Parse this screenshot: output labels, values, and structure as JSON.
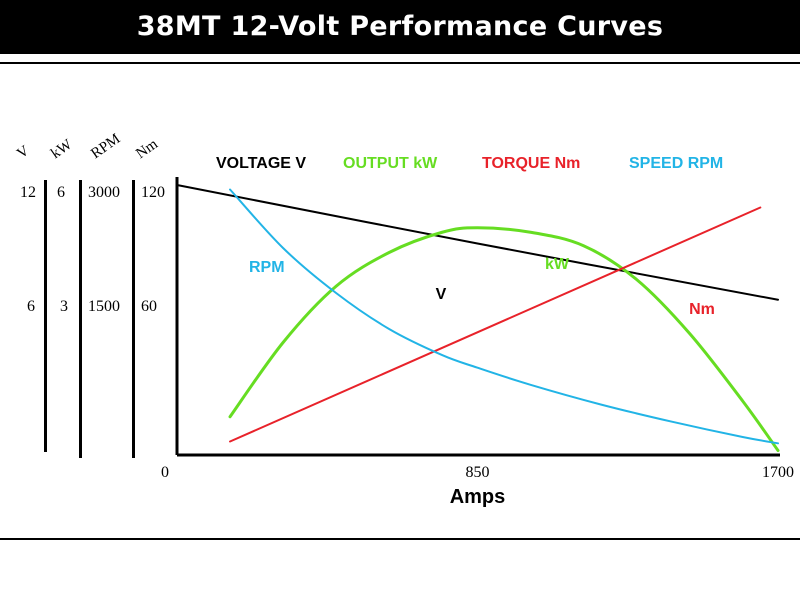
{
  "title": "38MT 12-Volt Performance Curves",
  "colors": {
    "voltage": "#000000",
    "output": "#66dd22",
    "torque": "#e8222a",
    "speed": "#22b4e6",
    "title_bg": "#000000",
    "title_text": "#ffffff"
  },
  "left_axes": [
    {
      "header": "V",
      "top": "12",
      "mid": "6"
    },
    {
      "header": "kW",
      "top": "6",
      "mid": "3"
    },
    {
      "header": "RPM",
      "top": "3000",
      "mid": "1500"
    },
    {
      "header": "Nm",
      "top": "120",
      "mid": "60"
    }
  ],
  "chart_data": {
    "type": "line",
    "title": "38MT 12-Volt Performance Curves",
    "xlabel": "Amps",
    "xlim": [
      0,
      1700
    ],
    "x_ticks": [
      "0",
      "850",
      "1700"
    ],
    "ylim_normalized": [
      0,
      1
    ],
    "legend": {
      "placement": "top",
      "entries": [
        "VOLTAGE V",
        "OUTPUT kW",
        "TORQUE Nm",
        "SPEED RPM"
      ]
    },
    "series": [
      {
        "name": "VOLTAGE V",
        "label": "V",
        "key": "voltage",
        "unit": "V",
        "x": [
          0,
          850,
          1700
        ],
        "y": [
          12.0,
          9.4,
          6.9
        ]
      },
      {
        "name": "OUTPUT kW",
        "label": "kW",
        "key": "output",
        "unit": "kW",
        "x": [
          150,
          300,
          450,
          600,
          750,
          850,
          1000,
          1150,
          1300,
          1450,
          1600,
          1700
        ],
        "y": [
          0.85,
          2.5,
          3.75,
          4.5,
          4.95,
          5.05,
          4.95,
          4.65,
          3.9,
          2.7,
          1.2,
          0.1
        ]
      },
      {
        "name": "TORQUE Nm",
        "label": "Nm",
        "key": "torque",
        "unit": "Nm",
        "x": [
          150,
          1650
        ],
        "y": [
          6,
          110
        ]
      },
      {
        "name": "SPEED RPM",
        "label": "RPM",
        "key": "speed",
        "unit": "RPM",
        "x": [
          150,
          300,
          450,
          600,
          750,
          850,
          1000,
          1200,
          1400,
          1600,
          1700
        ],
        "y": [
          2950,
          2300,
          1800,
          1400,
          1110,
          970,
          780,
          560,
          370,
          200,
          130
        ]
      }
    ],
    "grid": false
  }
}
